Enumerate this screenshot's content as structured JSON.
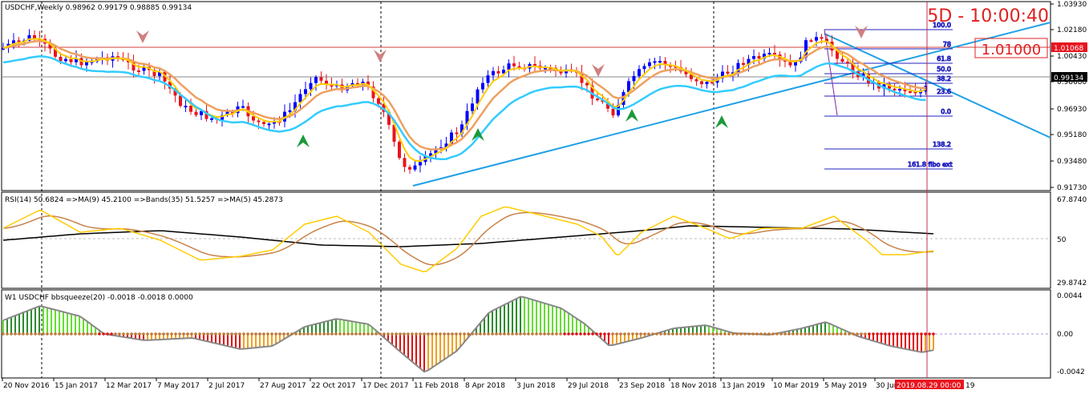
{
  "main_panel": {
    "title": "USDCHF,Weekly  0.98962 0.99179 0.98885 0.99134",
    "countdown": "5D - 10:00:40",
    "price_label": "1.01000",
    "y_axis": [
      "1.03930",
      "1.02180",
      "1.00430",
      "0.98680",
      "0.96930",
      "0.95180",
      "0.93480",
      "0.91730"
    ],
    "price_tags": {
      "upper": "1.01068",
      "current": "0.99134"
    },
    "fibo_levels": [
      "100.0",
      "78",
      "61.8",
      "50.0",
      "38.2",
      "23.6",
      "0.0",
      "138.2",
      "161.8 fibo ext"
    ]
  },
  "rsi_panel": {
    "title": "RSI(14) 50.6824  =>MA(9) 45.2100  =>Bands(35) 51.5257  =>MA(5) 45.2873",
    "y_axis": [
      "67.8740",
      "50",
      "29.8742"
    ]
  },
  "bb_panel": {
    "title": "W1 USDCHF bbsqueeze(20) -0.0018 -0.0018 0.0000",
    "y_axis": [
      "0.0044",
      "0.00",
      "-0.0042"
    ]
  },
  "x_axis": {
    "labels": [
      "20 Nov 2016",
      "15 Jan 2017",
      "12 Mar 2017",
      "7 May 2017",
      "2 Jul 2017",
      "27 Aug 2017",
      "22 Oct 2017",
      "17 Dec 2017",
      "11 Feb 2018",
      "8 Apr 2018",
      "3 Jun 2018",
      "29 Jul 2018",
      "23 Sep 2018",
      "18 Nov 2018",
      "13 Jan 2019",
      "10 Mar 2019",
      "5 May 2019",
      "30 Jun"
    ],
    "current_time": "2019.08.29 00:00",
    "tail_label": "19"
  },
  "colors": {
    "bull_candle": "#0000ff",
    "bear_candle": "#e8141e",
    "ema_fast": "#ffcc00",
    "ema_slow": "#eea060",
    "ema_cyan": "#33ccff",
    "trendline": "#1ea0e6",
    "countdown": "#e02020",
    "hist_green_dark": "#2e8b2e",
    "hist_green_light": "#66dd33",
    "hist_red": "#e01010",
    "hist_orange": "#f0a020"
  },
  "icons": {
    "up_arrow": "green-up-arrow-icon",
    "down_arrow": "pink-down-arrow-icon"
  }
}
